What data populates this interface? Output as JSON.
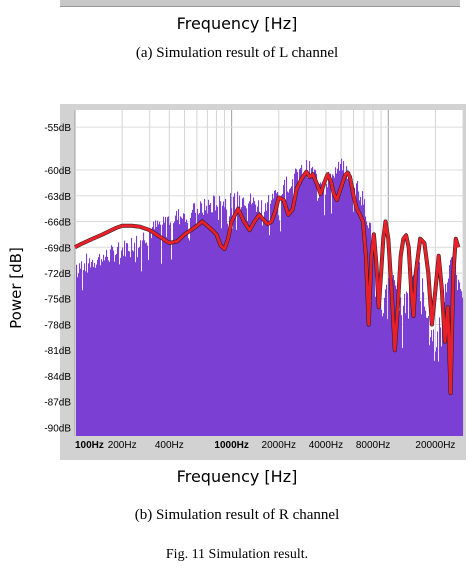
{
  "top": {
    "xlabel": "Frequency [Hz]",
    "caption": "(a)  Simulation result of L channel"
  },
  "chart_data": {
    "type": "area",
    "xlabel": "Frequency [Hz]",
    "ylabel": "Power [dB]",
    "x_scale": "log",
    "xlim": [
      100,
      30000
    ],
    "ylim": [
      -91,
      -53
    ],
    "grid": true,
    "x_ticks": [
      {
        "label": "100Hz",
        "value": 100,
        "bold": true
      },
      {
        "label": "200Hz",
        "value": 200,
        "bold": false
      },
      {
        "label": "400Hz",
        "value": 400,
        "bold": false
      },
      {
        "label": "1000Hz",
        "value": 1000,
        "bold": true
      },
      {
        "label": "2000Hz",
        "value": 2000,
        "bold": false
      },
      {
        "label": "4000Hz",
        "value": 4000,
        "bold": false
      },
      {
        "label": "8000Hz",
        "value": 8000,
        "bold": false
      },
      {
        "label": "20000Hz",
        "value": 20000,
        "bold": false
      }
    ],
    "y_ticks": [
      {
        "label": "-55dB",
        "value": -55
      },
      {
        "label": "-60dB",
        "value": -60
      },
      {
        "label": "-63dB",
        "value": -63
      },
      {
        "label": "-66dB",
        "value": -66
      },
      {
        "label": "-69dB",
        "value": -69
      },
      {
        "label": "-72dB",
        "value": -72
      },
      {
        "label": "-75dB",
        "value": -75
      },
      {
        "label": "-78dB",
        "value": -78
      },
      {
        "label": "-81dB",
        "value": -81
      },
      {
        "label": "-84dB",
        "value": -84
      },
      {
        "label": "-87dB",
        "value": -87
      },
      {
        "label": "-90dB",
        "value": -90
      }
    ],
    "series": [
      {
        "kind": "spectrum",
        "color": "#7b3fd4",
        "x": [
          100,
          120,
          150,
          200,
          250,
          300,
          350,
          400,
          500,
          600,
          700,
          800,
          1000,
          1200,
          1500,
          1800,
          2000,
          2300,
          2600,
          3000,
          3200,
          3500,
          4000,
          4500,
          5000,
          5500,
          6000,
          6500,
          7000,
          7500,
          8000,
          8500,
          9000,
          10000,
          11000,
          12000,
          13000,
          14000,
          15000,
          16000,
          18000,
          20000,
          22000,
          24000,
          26000,
          28000,
          30000
        ],
        "y": [
          -71,
          -70.5,
          -70,
          -69,
          -68,
          -67,
          -66,
          -65.5,
          -65,
          -64.5,
          -64,
          -63.5,
          -63.5,
          -63,
          -64,
          -63,
          -62.5,
          -61,
          -60.5,
          -59.5,
          -60,
          -60.5,
          -61,
          -60,
          -59.5,
          -60.5,
          -61,
          -62,
          -64,
          -66,
          -69,
          -72,
          -77,
          -72,
          -73,
          -76,
          -74,
          -72,
          -70,
          -72,
          -78,
          -80,
          -76,
          -72,
          -70,
          -72,
          -74
        ]
      },
      {
        "kind": "curve",
        "color": "#e8202a",
        "x": [
          100,
          110,
          130,
          150,
          180,
          200,
          230,
          260,
          300,
          350,
          400,
          450,
          500,
          550,
          600,
          650,
          700,
          750,
          800,
          850,
          900,
          950,
          1000,
          1100,
          1200,
          1300,
          1400,
          1500,
          1600,
          1700,
          1800,
          1900,
          2000,
          2150,
          2300,
          2450,
          2600,
          2800,
          3000,
          3150,
          3300,
          3500,
          3700,
          3900,
          4100,
          4300,
          4500,
          4700,
          5000,
          5300,
          5500,
          5700,
          6000,
          6300,
          6600,
          6900,
          7200,
          7500,
          7800,
          8100,
          8400,
          8700,
          9000,
          9300,
          9600,
          10000,
          10500,
          11000,
          11500,
          12000,
          12500,
          13000,
          13500,
          14000,
          14500,
          15000,
          16000,
          17000,
          18000,
          19000,
          20000,
          21000,
          22000,
          23000,
          24000,
          25000,
          26000,
          27000,
          28000
        ],
        "y": [
          -69,
          -68.6,
          -68,
          -67.5,
          -66.8,
          -66.5,
          -66.5,
          -66.6,
          -67,
          -67.8,
          -68.5,
          -68.3,
          -67.5,
          -67,
          -66.5,
          -66,
          -66.5,
          -67,
          -67.5,
          -68.8,
          -69.2,
          -68,
          -66,
          -64.5,
          -66,
          -67,
          -66,
          -65.2,
          -65.8,
          -66.3,
          -66,
          -64.8,
          -63.2,
          -63.5,
          -65.2,
          -64.6,
          -62.2,
          -61,
          -60.2,
          -60.8,
          -60.5,
          -61.6,
          -62.8,
          -61.5,
          -60.5,
          -61.3,
          -62.8,
          -63.5,
          -62,
          -60.6,
          -60.3,
          -60.8,
          -63,
          -64.5,
          -65.2,
          -66,
          -70,
          -78,
          -70,
          -67.5,
          -71,
          -76,
          -72,
          -68,
          -66,
          -68,
          -74,
          -81,
          -76,
          -70,
          -68,
          -67.6,
          -69,
          -74,
          -77,
          -72,
          -68,
          -68.5,
          -72,
          -78,
          -74,
          -70,
          -74,
          -80,
          -76,
          -86,
          -72,
          -68,
          -69
        ]
      }
    ]
  },
  "bottom": {
    "caption": "(b) Simulation result of R channel",
    "figure_title": "Fig. 11  Simulation result."
  }
}
